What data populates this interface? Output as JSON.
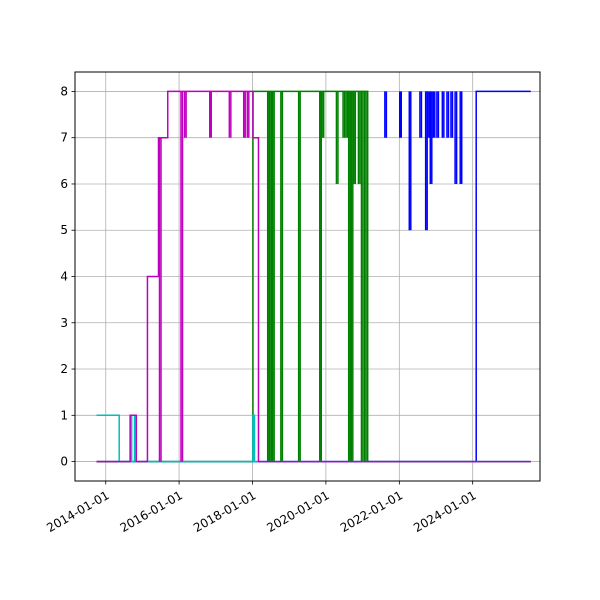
{
  "chart_data": {
    "type": "line",
    "title": "",
    "xlabel": "",
    "ylabel": "",
    "x_axis": {
      "scale": "date",
      "range": [
        "2013-03-01",
        "2025-11-01"
      ],
      "tick_values": [
        "2014-01-01",
        "2016-01-01",
        "2018-01-01",
        "2020-01-01",
        "2022-01-01",
        "2024-01-01"
      ],
      "tick_labels": [
        "2014-01-01",
        "2016-01-01",
        "2018-01-01",
        "2020-01-01",
        "2022-01-01",
        "2024-01-01"
      ]
    },
    "y_axis": {
      "range": [
        -0.42,
        8.42
      ],
      "tick_values": [
        0,
        1,
        2,
        3,
        4,
        5,
        6,
        7,
        8
      ],
      "tick_labels": [
        "0",
        "1",
        "2",
        "3",
        "4",
        "5",
        "6",
        "7",
        "8"
      ]
    },
    "grid": true,
    "legend": "none",
    "series": [
      {
        "color": "#0000ff",
        "step": true,
        "points": [
          [
            "2013-10-01",
            0
          ],
          [
            "2024-02-05",
            0
          ],
          [
            "2024-02-05",
            8
          ],
          [
            "2025-08-01",
            8
          ]
        ],
        "spikes": [
          {
            "x": "2021-08-10",
            "from": 8,
            "to": 7
          },
          {
            "x": "2022-01-05",
            "from": 8,
            "to": 7
          },
          {
            "x": "2022-04-10",
            "from": 8,
            "to": 5
          },
          {
            "x": "2022-07-25",
            "from": 8,
            "to": 7
          },
          {
            "x": "2022-09-20",
            "from": 8,
            "to": 5
          },
          {
            "x": "2022-10-10",
            "from": 8,
            "to": 7
          },
          {
            "x": "2022-11-05",
            "from": 8,
            "to": 6
          },
          {
            "x": "2022-12-05",
            "from": 8,
            "to": 7
          },
          {
            "x": "2023-01-10",
            "from": 8,
            "to": 7
          },
          {
            "x": "2023-03-05",
            "from": 8,
            "to": 7
          },
          {
            "x": "2023-04-20",
            "from": 8,
            "to": 7
          },
          {
            "x": "2023-05-30",
            "from": 8,
            "to": 7
          },
          {
            "x": "2023-07-10",
            "from": 8,
            "to": 6
          },
          {
            "x": "2023-08-30",
            "from": 8,
            "to": 6
          }
        ]
      },
      {
        "color": "#008000",
        "step": true,
        "points": [
          [
            "2013-10-01",
            0
          ],
          [
            "2018-01-05",
            0
          ],
          [
            "2018-01-05",
            8
          ],
          [
            "2021-02-20",
            8
          ],
          [
            "2021-02-20",
            0
          ],
          [
            "2025-08-01",
            0
          ]
        ],
        "spikes": [
          {
            "x": "2018-06-01",
            "from": 8,
            "to": 0
          },
          {
            "x": "2018-06-25",
            "from": 8,
            "to": 0
          },
          {
            "x": "2018-07-20",
            "from": 8,
            "to": 0
          },
          {
            "x": "2018-10-10",
            "from": 8,
            "to": 0
          },
          {
            "x": "2019-04-05",
            "from": 8,
            "to": 0
          },
          {
            "x": "2019-11-01",
            "from": 8,
            "to": 0
          },
          {
            "x": "2019-11-25",
            "from": 8,
            "to": 7
          },
          {
            "x": "2020-04-15",
            "from": 8,
            "to": 6
          },
          {
            "x": "2020-06-20",
            "from": 8,
            "to": 7
          },
          {
            "x": "2020-07-20",
            "from": 8,
            "to": 7
          },
          {
            "x": "2020-08-15",
            "from": 8,
            "to": 0
          },
          {
            "x": "2020-09-10",
            "from": 8,
            "to": 0
          },
          {
            "x": "2020-10-05",
            "from": 8,
            "to": 6
          },
          {
            "x": "2020-11-20",
            "from": 8,
            "to": 6
          },
          {
            "x": "2020-12-20",
            "from": 8,
            "to": 0
          },
          {
            "x": "2021-01-20",
            "from": 8,
            "to": 0
          }
        ]
      },
      {
        "color": "#00bfbf",
        "step": true,
        "points": [
          [
            "2013-10-01",
            1
          ],
          [
            "2014-05-15",
            1
          ],
          [
            "2014-05-15",
            0
          ],
          [
            "2018-01-05",
            0
          ],
          [
            "2018-01-05",
            1
          ],
          [
            "2018-01-20",
            1
          ],
          [
            "2018-01-20",
            0
          ],
          [
            "2025-08-01",
            0
          ]
        ],
        "spikes": [
          {
            "x": "2014-09-01",
            "from": 1,
            "to": 0
          },
          {
            "x": "2014-10-15",
            "from": 1,
            "to": 0
          }
        ]
      },
      {
        "color": "#bf00bf",
        "step": true,
        "points": [
          [
            "2013-10-01",
            0
          ],
          [
            "2014-09-01",
            0
          ],
          [
            "2014-09-01",
            1
          ],
          [
            "2014-11-01",
            1
          ],
          [
            "2014-11-01",
            0
          ],
          [
            "2015-02-20",
            0
          ],
          [
            "2015-02-20",
            4
          ],
          [
            "2015-06-10",
            4
          ],
          [
            "2015-06-10",
            7
          ],
          [
            "2015-09-10",
            7
          ],
          [
            "2015-09-10",
            8
          ],
          [
            "2018-01-05",
            8
          ],
          [
            "2018-01-05",
            7
          ],
          [
            "2018-03-01",
            7
          ],
          [
            "2018-03-01",
            0
          ],
          [
            "2025-08-01",
            0
          ]
        ],
        "spikes": [
          {
            "x": "2015-06-20",
            "from": 7,
            "to": 0
          },
          {
            "x": "2016-01-20",
            "from": 8,
            "to": 0
          },
          {
            "x": "2016-02-25",
            "from": 8,
            "to": 7
          },
          {
            "x": "2016-11-01",
            "from": 8,
            "to": 7
          },
          {
            "x": "2017-05-15",
            "from": 8,
            "to": 7
          },
          {
            "x": "2017-10-05",
            "from": 8,
            "to": 7
          },
          {
            "x": "2017-11-10",
            "from": 8,
            "to": 7
          }
        ]
      }
    ]
  }
}
